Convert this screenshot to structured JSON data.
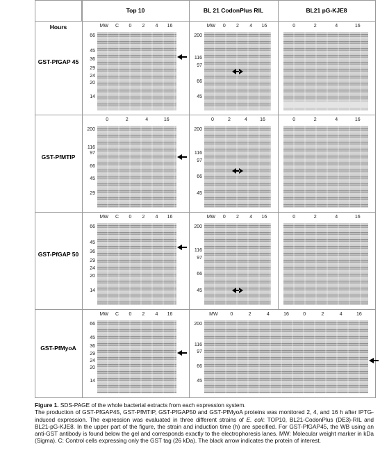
{
  "figure": {
    "hours_label": "Hours",
    "columns": [
      "Top 10",
      "BL 21 CodonPlus RIL",
      "BL21 pG-KJE8"
    ],
    "rows": [
      {
        "label": "GST-PfGAP 45",
        "gels": [
          {
            "lanes": [
              "MW",
              "C",
              "0",
              "2",
              "4",
              "16"
            ],
            "markers": [
              66,
              45,
              36,
              29,
              24,
              20,
              14
            ]
          },
          {
            "lanes": [
              "MW",
              "0",
              "2",
              "4",
              "16"
            ],
            "markers": [
              200,
              116,
              97,
              66,
              45
            ]
          },
          {
            "lanes": [
              "0",
              "2",
              "4",
              "16"
            ],
            "markers": []
          }
        ]
      },
      {
        "label": "GST-PfMTIP",
        "gels": [
          {
            "lanes": [
              "0",
              "2",
              "4",
              "16"
            ],
            "markers": [
              200,
              116,
              97,
              66,
              45,
              29
            ]
          },
          {
            "lanes": [
              "0",
              "2",
              "4",
              "16"
            ],
            "markers": [
              200,
              116,
              97,
              66,
              45
            ]
          },
          {
            "lanes": [
              "0",
              "2",
              "4",
              "16"
            ],
            "markers": []
          }
        ]
      },
      {
        "label": "GST-PfGAP 50",
        "gels": [
          {
            "lanes": [
              "MW",
              "C",
              "0",
              "2",
              "4",
              "16"
            ],
            "markers": [
              66,
              45,
              36,
              29,
              24,
              20,
              14
            ]
          },
          {
            "lanes": [
              "MW",
              "0",
              "2",
              "4",
              "16"
            ],
            "markers": [
              200,
              116,
              97,
              66,
              45
            ]
          },
          {
            "lanes": [
              "0",
              "2",
              "4",
              "16"
            ],
            "markers": []
          }
        ]
      },
      {
        "label": "GST-PfMyoA",
        "gels": [
          {
            "lanes": [
              "MW",
              "C",
              "0",
              "2",
              "4",
              "16"
            ],
            "markers": [
              66,
              45,
              36,
              29,
              24,
              20,
              14
            ]
          },
          {
            "lanes": [
              "MW",
              "0",
              "2",
              "4",
              "16",
              "0",
              "2",
              "4",
              "16"
            ],
            "markers": [
              200,
              116,
              97,
              66,
              45
            ]
          }
        ]
      }
    ]
  },
  "caption": {
    "label": "Figure 1.",
    "title": "SDS-PAGE of the whole bacterial extracts from each expression system.",
    "text_before": "The production of GST-PfGAP45, GST-PfMTIP, GST-PfGAP50 and GST-PfMyoA proteins was monitored 2, 4, and 16 h after IPTG-induced expression. The expression was evaluated in three different strains of ",
    "italic": "E. coli",
    "text_after": ": TOP10, BL21-CodonPlus (DE3)-RIL and BL21-pG-KJE8. In the upper part of the figure, the strain and induction time (h) are specified. For GST-PfGAP45, the WB using an anti-GST antibody is found below the gel and corresponds exactly to the electrophoresis lanes. MW: Molecular weight marker in kDa (Sigma). C: Control cells expressing only the GST tag (26 kDa). The black arrow indicates the protein of interest."
  }
}
